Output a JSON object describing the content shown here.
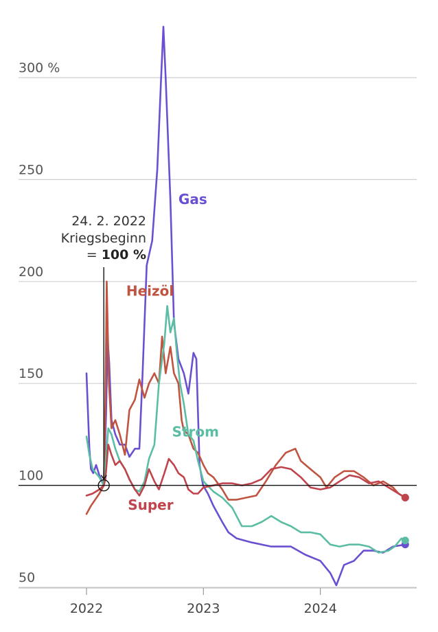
{
  "chart_data": {
    "type": "line",
    "title": "",
    "xlabel": "",
    "ylabel": "",
    "ylim": [
      47,
      328
    ],
    "xlim": [
      "2022-01-01",
      "2024-09-30"
    ],
    "yticks": [
      {
        "value": 50,
        "label": "50"
      },
      {
        "value": 100,
        "label": "100"
      },
      {
        "value": 150,
        "label": "150"
      },
      {
        "value": 200,
        "label": "200"
      },
      {
        "value": 250,
        "label": "250"
      },
      {
        "value": 300,
        "label": "300 %"
      }
    ],
    "xticks": [
      {
        "value": "2022-01-01",
        "label": "2022"
      },
      {
        "value": "2023-01-01",
        "label": "2023"
      },
      {
        "value": "2024-01-01",
        "label": "2024"
      }
    ],
    "grid": true,
    "baseline": 100,
    "annotation": {
      "date": "2022-02-24",
      "line1": "24. 2. 2022",
      "line2": "Kriegsbeginn",
      "line3_prefix": "= ",
      "line3_bold": "100 %"
    },
    "series": [
      {
        "name": "Gas",
        "color": "#6a4fd1",
        "label_at": {
          "date": "2022-10-15",
          "value": 238
        },
        "points": [
          [
            "2022-01-01",
            155
          ],
          [
            "2022-01-05",
            138
          ],
          [
            "2022-01-10",
            118
          ],
          [
            "2022-01-15",
            108
          ],
          [
            "2022-01-22",
            106
          ],
          [
            "2022-01-31",
            110
          ],
          [
            "2022-02-10",
            105
          ],
          [
            "2022-02-24",
            100
          ],
          [
            "2022-03-03",
            135
          ],
          [
            "2022-03-08",
            172
          ],
          [
            "2022-03-13",
            160
          ],
          [
            "2022-03-20",
            132
          ],
          [
            "2022-04-01",
            125
          ],
          [
            "2022-04-15",
            120
          ],
          [
            "2022-05-01",
            120
          ],
          [
            "2022-05-15",
            114
          ],
          [
            "2022-06-01",
            118
          ],
          [
            "2022-06-15",
            118
          ],
          [
            "2022-06-25",
            155
          ],
          [
            "2022-07-08",
            208
          ],
          [
            "2022-07-25",
            220
          ],
          [
            "2022-08-10",
            255
          ],
          [
            "2022-08-22",
            300
          ],
          [
            "2022-08-29",
            325
          ],
          [
            "2022-09-05",
            300
          ],
          [
            "2022-09-20",
            240
          ],
          [
            "2022-10-01",
            180
          ],
          [
            "2022-10-15",
            162
          ],
          [
            "2022-11-01",
            155
          ],
          [
            "2022-11-15",
            145
          ],
          [
            "2022-12-01",
            165
          ],
          [
            "2022-12-10",
            162
          ],
          [
            "2022-12-20",
            110
          ],
          [
            "2022-12-31",
            100
          ],
          [
            "2023-01-15",
            96
          ],
          [
            "2023-02-01",
            90
          ],
          [
            "2023-03-01",
            82
          ],
          [
            "2023-03-20",
            77
          ],
          [
            "2023-04-15",
            74
          ],
          [
            "2023-06-01",
            72
          ],
          [
            "2023-08-01",
            70
          ],
          [
            "2023-10-01",
            70
          ],
          [
            "2023-11-15",
            66
          ],
          [
            "2024-01-01",
            63
          ],
          [
            "2024-02-01",
            57
          ],
          [
            "2024-02-20",
            51
          ],
          [
            "2024-03-15",
            61
          ],
          [
            "2024-04-15",
            63
          ],
          [
            "2024-05-15",
            68
          ],
          [
            "2024-06-15",
            68
          ],
          [
            "2024-07-15",
            67
          ],
          [
            "2024-08-15",
            70
          ],
          [
            "2024-09-22",
            71
          ]
        ]
      },
      {
        "name": "Heizöl",
        "color": "#bf5440",
        "label_at": {
          "date": "2022-05-05",
          "value": 193
        },
        "points": [
          [
            "2022-01-01",
            86
          ],
          [
            "2022-01-15",
            90
          ],
          [
            "2022-02-10",
            96
          ],
          [
            "2022-02-24",
            100
          ],
          [
            "2022-03-01",
            140
          ],
          [
            "2022-03-05",
            200
          ],
          [
            "2022-03-12",
            150
          ],
          [
            "2022-03-20",
            128
          ],
          [
            "2022-04-01",
            132
          ],
          [
            "2022-04-15",
            125
          ],
          [
            "2022-05-01",
            115
          ],
          [
            "2022-05-15",
            137
          ],
          [
            "2022-06-01",
            142
          ],
          [
            "2022-06-15",
            152
          ],
          [
            "2022-07-01",
            143
          ],
          [
            "2022-07-15",
            150
          ],
          [
            "2022-08-01",
            155
          ],
          [
            "2022-08-15",
            150
          ],
          [
            "2022-08-25",
            173
          ],
          [
            "2022-09-05",
            155
          ],
          [
            "2022-09-20",
            168
          ],
          [
            "2022-10-01",
            155
          ],
          [
            "2022-10-15",
            150
          ],
          [
            "2022-10-25",
            132
          ],
          [
            "2022-11-01",
            127
          ],
          [
            "2022-11-15",
            125
          ],
          [
            "2022-12-01",
            118
          ],
          [
            "2022-12-15",
            116
          ],
          [
            "2023-01-01",
            110
          ],
          [
            "2023-01-15",
            106
          ],
          [
            "2023-02-01",
            104
          ],
          [
            "2023-03-01",
            98
          ],
          [
            "2023-03-20",
            93
          ],
          [
            "2023-04-15",
            93
          ],
          [
            "2023-05-15",
            94
          ],
          [
            "2023-06-15",
            95
          ],
          [
            "2023-07-15",
            102
          ],
          [
            "2023-08-15",
            110
          ],
          [
            "2023-09-15",
            116
          ],
          [
            "2023-10-15",
            118
          ],
          [
            "2023-11-01",
            112
          ],
          [
            "2023-12-01",
            108
          ],
          [
            "2024-01-01",
            104
          ],
          [
            "2024-01-20",
            99
          ],
          [
            "2024-02-15",
            104
          ],
          [
            "2024-03-15",
            107
          ],
          [
            "2024-04-15",
            107
          ],
          [
            "2024-05-15",
            104
          ],
          [
            "2024-06-15",
            100
          ],
          [
            "2024-07-15",
            102
          ],
          [
            "2024-08-15",
            99
          ],
          [
            "2024-09-01",
            96
          ],
          [
            "2024-09-22",
            94
          ]
        ]
      },
      {
        "name": "Strom",
        "color": "#5bbda3",
        "label_at": {
          "date": "2022-09-25",
          "value": 124
        },
        "points": [
          [
            "2022-01-01",
            124
          ],
          [
            "2022-01-10",
            115
          ],
          [
            "2022-01-20",
            108
          ],
          [
            "2022-02-10",
            104
          ],
          [
            "2022-02-24",
            100
          ],
          [
            "2022-03-10",
            128
          ],
          [
            "2022-03-20",
            125
          ],
          [
            "2022-04-01",
            118
          ],
          [
            "2022-04-15",
            112
          ],
          [
            "2022-05-01",
            108
          ],
          [
            "2022-05-15",
            103
          ],
          [
            "2022-06-01",
            98
          ],
          [
            "2022-06-15",
            97
          ],
          [
            "2022-07-01",
            102
          ],
          [
            "2022-07-15",
            113
          ],
          [
            "2022-08-01",
            120
          ],
          [
            "2022-08-15",
            150
          ],
          [
            "2022-09-01",
            170
          ],
          [
            "2022-09-10",
            188
          ],
          [
            "2022-09-20",
            175
          ],
          [
            "2022-10-01",
            182
          ],
          [
            "2022-10-10",
            165
          ],
          [
            "2022-10-20",
            150
          ],
          [
            "2022-11-01",
            140
          ],
          [
            "2022-11-15",
            125
          ],
          [
            "2022-12-01",
            122
          ],
          [
            "2022-12-15",
            112
          ],
          [
            "2023-01-01",
            102
          ],
          [
            "2023-02-01",
            97
          ],
          [
            "2023-03-01",
            94
          ],
          [
            "2023-04-01",
            89
          ],
          [
            "2023-05-01",
            80
          ],
          [
            "2023-06-01",
            80
          ],
          [
            "2023-07-01",
            82
          ],
          [
            "2023-08-01",
            85
          ],
          [
            "2023-09-01",
            82
          ],
          [
            "2023-10-01",
            80
          ],
          [
            "2023-11-01",
            77
          ],
          [
            "2023-12-01",
            77
          ],
          [
            "2024-01-01",
            76
          ],
          [
            "2024-02-01",
            71
          ],
          [
            "2024-03-01",
            70
          ],
          [
            "2024-04-01",
            71
          ],
          [
            "2024-05-01",
            71
          ],
          [
            "2024-06-01",
            70
          ],
          [
            "2024-07-01",
            67
          ],
          [
            "2024-08-01",
            68
          ],
          [
            "2024-08-20",
            70
          ],
          [
            "2024-09-10",
            74
          ],
          [
            "2024-09-22",
            73
          ]
        ]
      },
      {
        "name": "Super",
        "color": "#c0444d",
        "label_at": {
          "date": "2022-05-10",
          "value": 88
        },
        "points": [
          [
            "2022-01-01",
            95
          ],
          [
            "2022-01-20",
            96
          ],
          [
            "2022-02-10",
            98
          ],
          [
            "2022-02-24",
            100
          ],
          [
            "2022-03-01",
            103
          ],
          [
            "2022-03-10",
            120
          ],
          [
            "2022-03-20",
            115
          ],
          [
            "2022-04-01",
            110
          ],
          [
            "2022-04-15",
            112
          ],
          [
            "2022-05-01",
            108
          ],
          [
            "2022-05-15",
            103
          ],
          [
            "2022-06-01",
            98
          ],
          [
            "2022-06-15",
            95
          ],
          [
            "2022-07-01",
            100
          ],
          [
            "2022-07-15",
            108
          ],
          [
            "2022-08-01",
            102
          ],
          [
            "2022-08-15",
            98
          ],
          [
            "2022-09-01",
            106
          ],
          [
            "2022-09-15",
            113
          ],
          [
            "2022-10-01",
            110
          ],
          [
            "2022-10-15",
            106
          ],
          [
            "2022-11-01",
            104
          ],
          [
            "2022-11-15",
            98
          ],
          [
            "2022-12-01",
            96
          ],
          [
            "2022-12-15",
            96
          ],
          [
            "2023-01-01",
            99
          ],
          [
            "2023-02-01",
            100
          ],
          [
            "2023-03-01",
            101
          ],
          [
            "2023-04-01",
            101
          ],
          [
            "2023-05-01",
            100
          ],
          [
            "2023-06-01",
            101
          ],
          [
            "2023-07-01",
            103
          ],
          [
            "2023-08-01",
            108
          ],
          [
            "2023-09-01",
            109
          ],
          [
            "2023-10-01",
            108
          ],
          [
            "2023-11-01",
            104
          ],
          [
            "2023-12-01",
            99
          ],
          [
            "2024-01-01",
            98
          ],
          [
            "2024-02-01",
            99
          ],
          [
            "2024-03-01",
            102
          ],
          [
            "2024-04-01",
            105
          ],
          [
            "2024-05-01",
            104
          ],
          [
            "2024-06-01",
            101
          ],
          [
            "2024-07-01",
            102
          ],
          [
            "2024-08-01",
            99
          ],
          [
            "2024-09-01",
            96
          ],
          [
            "2024-09-22",
            94
          ]
        ]
      }
    ]
  }
}
